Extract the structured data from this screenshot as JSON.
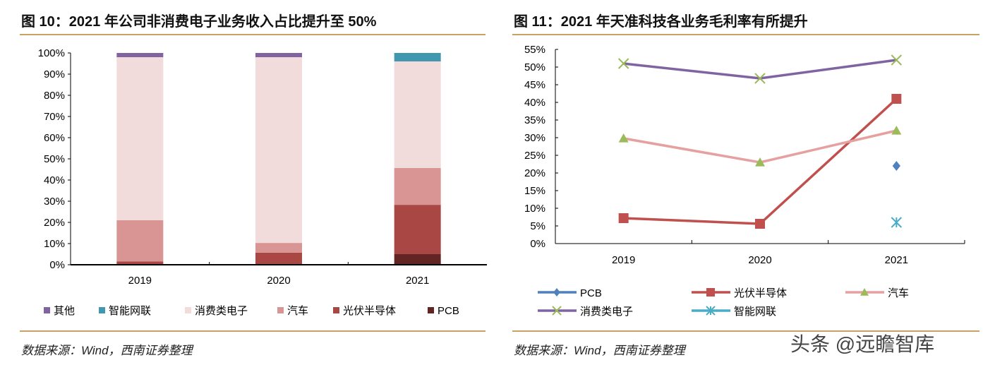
{
  "chart_data": [
    {
      "type": "bar",
      "stacked": true,
      "title": "图 10：2021 年公司非消费电子业务收入占比提升至 50%",
      "categories": [
        "2019",
        "2020",
        "2021"
      ],
      "ylim": [
        0,
        100
      ],
      "yticks": [
        "0%",
        "10%",
        "20%",
        "30%",
        "40%",
        "50%",
        "60%",
        "70%",
        "80%",
        "90%",
        "100%"
      ],
      "legend_position": "bottom",
      "series": [
        {
          "name": "PCB",
          "color": "#632523",
          "values": [
            0,
            0,
            5
          ]
        },
        {
          "name": "光伏半导体",
          "color": "#a94745",
          "values": [
            1.5,
            5.7,
            23.3
          ]
        },
        {
          "name": "汽车",
          "color": "#d99594",
          "values": [
            19.5,
            4.6,
            17.4
          ]
        },
        {
          "name": "消费类电子",
          "color": "#f2dcdb",
          "values": [
            77,
            87.7,
            50.3
          ]
        },
        {
          "name": "智能网联",
          "color": "#4197b0",
          "values": [
            0,
            0,
            4
          ]
        },
        {
          "name": "其他",
          "color": "#8064a2",
          "values": [
            2,
            2,
            0
          ]
        }
      ],
      "legend_order": [
        "其他",
        "智能网联",
        "消费类电子",
        "汽车",
        "光伏半导体",
        "PCB"
      ],
      "source": "数据来源：Wind，西南证券整理"
    },
    {
      "type": "line",
      "title": "图 11：2021 年天准科技各业务毛利率有所提升",
      "categories": [
        "2019",
        "2020",
        "2021"
      ],
      "ylim": [
        0,
        55
      ],
      "yticks": [
        "0%",
        "5%",
        "10%",
        "15%",
        "20%",
        "25%",
        "30%",
        "35%",
        "40%",
        "45%",
        "50%",
        "55%"
      ],
      "legend_position": "bottom",
      "series": [
        {
          "name": "PCB",
          "color": "#4f81bd",
          "marker": "diamond",
          "values": [
            null,
            null,
            22
          ]
        },
        {
          "name": "光伏半导体",
          "color": "#c0504d",
          "marker": "square",
          "values": [
            7.2,
            5.6,
            41
          ]
        },
        {
          "name": "汽车",
          "color": "#e6a0a0",
          "marker": "triangle",
          "markerColor": "#9bbb59",
          "values": [
            29.8,
            23,
            32
          ]
        },
        {
          "name": "消费类电子",
          "color": "#8064a2",
          "marker": "x",
          "markerColor": "#9bbb59",
          "values": [
            51,
            46.8,
            52
          ]
        },
        {
          "name": "智能网联",
          "color": "#4bacc6",
          "marker": "star",
          "values": [
            null,
            null,
            6
          ]
        }
      ],
      "source": "数据来源：Wind，西南证券整理"
    }
  ],
  "watermark": "头条 @远瞻智库"
}
